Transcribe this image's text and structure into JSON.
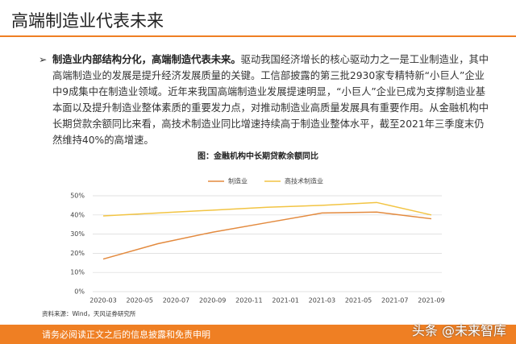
{
  "header": {
    "title": "高端制造业代表未来"
  },
  "bullet": {
    "lead": "制造业内部结构分化，高端制造代表未来。",
    "text": "驱动我国经济增长的核心驱动力之一是工业制造业，其中高端制造业的发展是提升经济发展质量的关键。工信部披露的第三批2930家专精特新“小巨人”企业中9成集中在制造业领域。近年来我国高端制造业发展提速明显，“小巨人”企业已成为支撑制造业基本面以及提升制造业整体素质的重要发力点，对推动制造业高质量发展具有重要作用。从金融机构中长期贷款余额同比来看，高技术制造业同比增速持续高于制造业整体水平，截至2021年三季度末仍然维持40%的高增速。"
  },
  "chart_data": {
    "type": "line",
    "title": "图：金融机构中长期贷款余额同比",
    "x": [
      "2020-03",
      "2020-06",
      "2020-09",
      "2020-12",
      "2021-03",
      "2021-06",
      "2021-09"
    ],
    "xticks": [
      "2020-03",
      "2020-05",
      "2020-07",
      "2020-09",
      "2020-11",
      "2021-01",
      "2021-03",
      "2021-05",
      "2021-07",
      "2021-09"
    ],
    "series": [
      {
        "name": "制造业",
        "color": "#e38a3e",
        "values": [
          17,
          25,
          31,
          36,
          41,
          41.5,
          38
        ]
      },
      {
        "name": "高技术制造业",
        "color": "#f2c443",
        "values": [
          39.5,
          41,
          42.5,
          44,
          45,
          46.5,
          40
        ]
      }
    ],
    "ylim": [
      0,
      50
    ],
    "yticks": [
      {
        "value": 0,
        "label": "0%"
      },
      {
        "value": 10,
        "label": "10%"
      },
      {
        "value": 20,
        "label": "20%"
      },
      {
        "value": 30,
        "label": "30%"
      },
      {
        "value": 40,
        "label": "40%"
      },
      {
        "value": 50,
        "label": "50%"
      }
    ],
    "grid": true,
    "legend": "top"
  },
  "source": "资料来源：Wind，天风证券研究所",
  "footer": "请务必阅读正文之后的信息披露和免责申明",
  "watermark": "头条 @未来智库"
}
